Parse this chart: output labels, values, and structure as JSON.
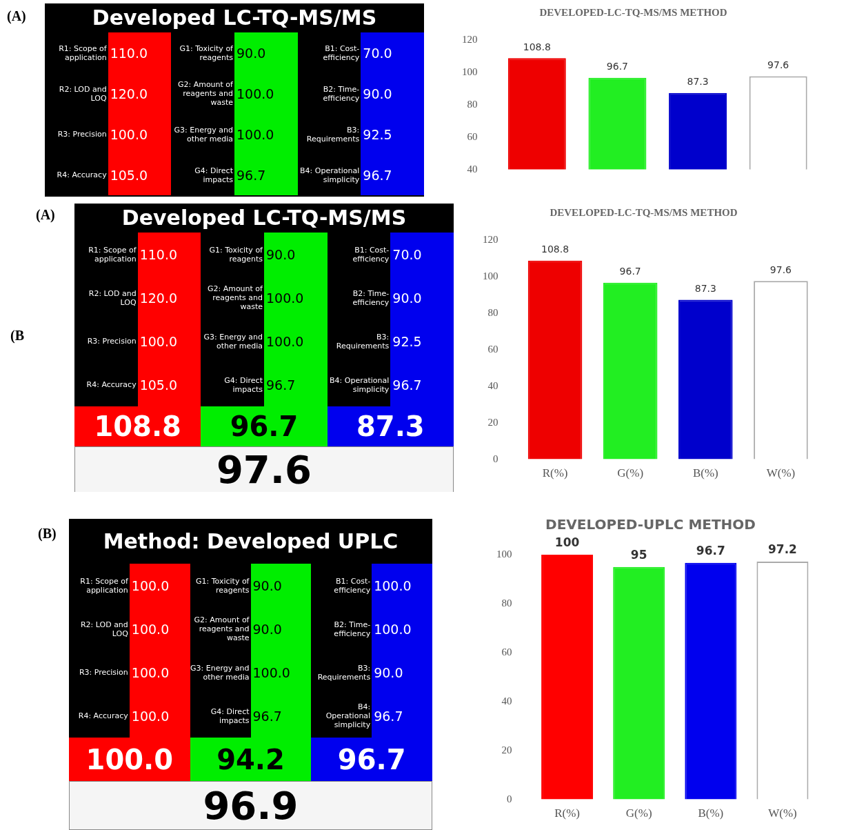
{
  "chart_data": [
    {
      "type": "other",
      "title": "Developed LC-TQ-MS/MS",
      "annotations": [
        "(A)"
      ],
      "categories": [
        "R1: Scope of application",
        "R2: LOD and LOQ",
        "R3: Precision",
        "R4: Accuracy",
        "G1: Toxicity of reagents",
        "G2: Amount of reagents and waste",
        "G3: Energy and other media",
        "G4: Direct impacts",
        "B1: Cost-efficiency",
        "B2: Time-efficiency",
        "B3: Requirements",
        "B4: Operational simplicity"
      ],
      "values": [
        110.0,
        120.0,
        100.0,
        105.0,
        90.0,
        100.0,
        100.0,
        96.7,
        70.0,
        90.0,
        92.5,
        96.7
      ],
      "value_labels": [
        "110.0",
        "120.0",
        "100.0",
        "105.0",
        "90.0",
        "100.0",
        "100.0",
        "96.7",
        "70.0",
        "90.0",
        "92.5",
        "96.7"
      ]
    },
    {
      "type": "bar",
      "title": "DEVELOPED-LC-TQ-MS/MS METHOD",
      "categories": [
        null,
        null,
        null,
        null
      ],
      "values": [
        108.8,
        96.7,
        87.3,
        97.6
      ],
      "colors": [
        "#ee0000",
        "#22ee22",
        "#0000cc",
        "#ffffff"
      ],
      "ylim": [
        40,
        120
      ],
      "yticks": [
        40,
        60,
        80,
        100,
        120
      ],
      "data_labels": true
    },
    {
      "type": "other",
      "title": "Developed LC-TQ-MS/MS",
      "annotations": [
        "(A)",
        "(B"
      ],
      "categories": [
        "R1: Scope of application",
        "R2: LOD and LOQ",
        "R3: Precision",
        "R4: Accuracy",
        "G1: Toxicity of reagents",
        "G2: Amount of reagents and waste",
        "G3: Energy and other media",
        "G4: Direct impacts",
        "B1: Cost-efficiency",
        "B2: Time-efficiency",
        "B3: Requirements",
        "B4: Operational simplicity"
      ],
      "values": [
        110.0,
        120.0,
        100.0,
        105.0,
        90.0,
        100.0,
        100.0,
        96.7,
        70.0,
        90.0,
        92.5,
        96.7
      ],
      "value_labels": [
        "110.0",
        "120.0",
        "100.0",
        "105.0",
        "90.0",
        "100.0",
        "100.0",
        "96.7",
        "70.0",
        "90.0",
        "92.5",
        "96.7"
      ],
      "totals": [
        "108.8",
        "96.7",
        "87.3",
        "97.6"
      ]
    },
    {
      "type": "bar",
      "title": "DEVELOPED-LC-TQ-MS/MS METHOD",
      "categories": [
        "R(%)",
        "G(%)",
        "B(%)",
        "W(%)"
      ],
      "values": [
        108.8,
        96.7,
        87.3,
        97.6
      ],
      "colors": [
        "#ee0000",
        "#22ee22",
        "#0000cc",
        "#ffffff"
      ],
      "ylim": [
        0,
        120
      ],
      "yticks": [
        0,
        20,
        40,
        60,
        80,
        100,
        120
      ],
      "data_labels": true
    },
    {
      "type": "other",
      "title": "Method: Developed UPLC",
      "annotations": [
        "(B)"
      ],
      "categories": [
        "R1: Scope of application",
        "R2: LOD and LOQ",
        "R3: Precision",
        "R4: Accuracy",
        "G1: Toxicity of reagents",
        "G2: Amount of reagents and waste",
        "G3: Energy and other media",
        "G4: Direct impacts",
        "B1: Cost-efficiency",
        "B2: Time-efficiency",
        "B3: Requirements",
        "B4: Operational simplicity"
      ],
      "values": [
        100.0,
        100.0,
        100.0,
        100.0,
        90.0,
        90.0,
        100.0,
        96.7,
        100.0,
        100.0,
        90.0,
        96.7
      ],
      "value_labels": [
        "100.0",
        "100.0",
        "100.0",
        "100.0",
        "90.0",
        "90.0",
        "100.0",
        "96.7",
        "100.0",
        "100.0",
        "90.0",
        "96.7"
      ],
      "totals": [
        "100.0",
        "94.2",
        "96.7",
        "96.9"
      ]
    },
    {
      "type": "bar",
      "title": "DEVELOPED-UPLC METHOD",
      "categories": [
        "R(%)",
        "G(%)",
        "B(%)",
        "W(%)"
      ],
      "values": [
        100,
        95,
        96.7,
        97.2
      ],
      "colors": [
        "#ff0000",
        "#22ee22",
        "#0000ee",
        "#ffffff"
      ],
      "ylim": [
        0,
        100
      ],
      "yticks": [
        0,
        20,
        40,
        60,
        80,
        100
      ],
      "data_labels": true
    }
  ]
}
